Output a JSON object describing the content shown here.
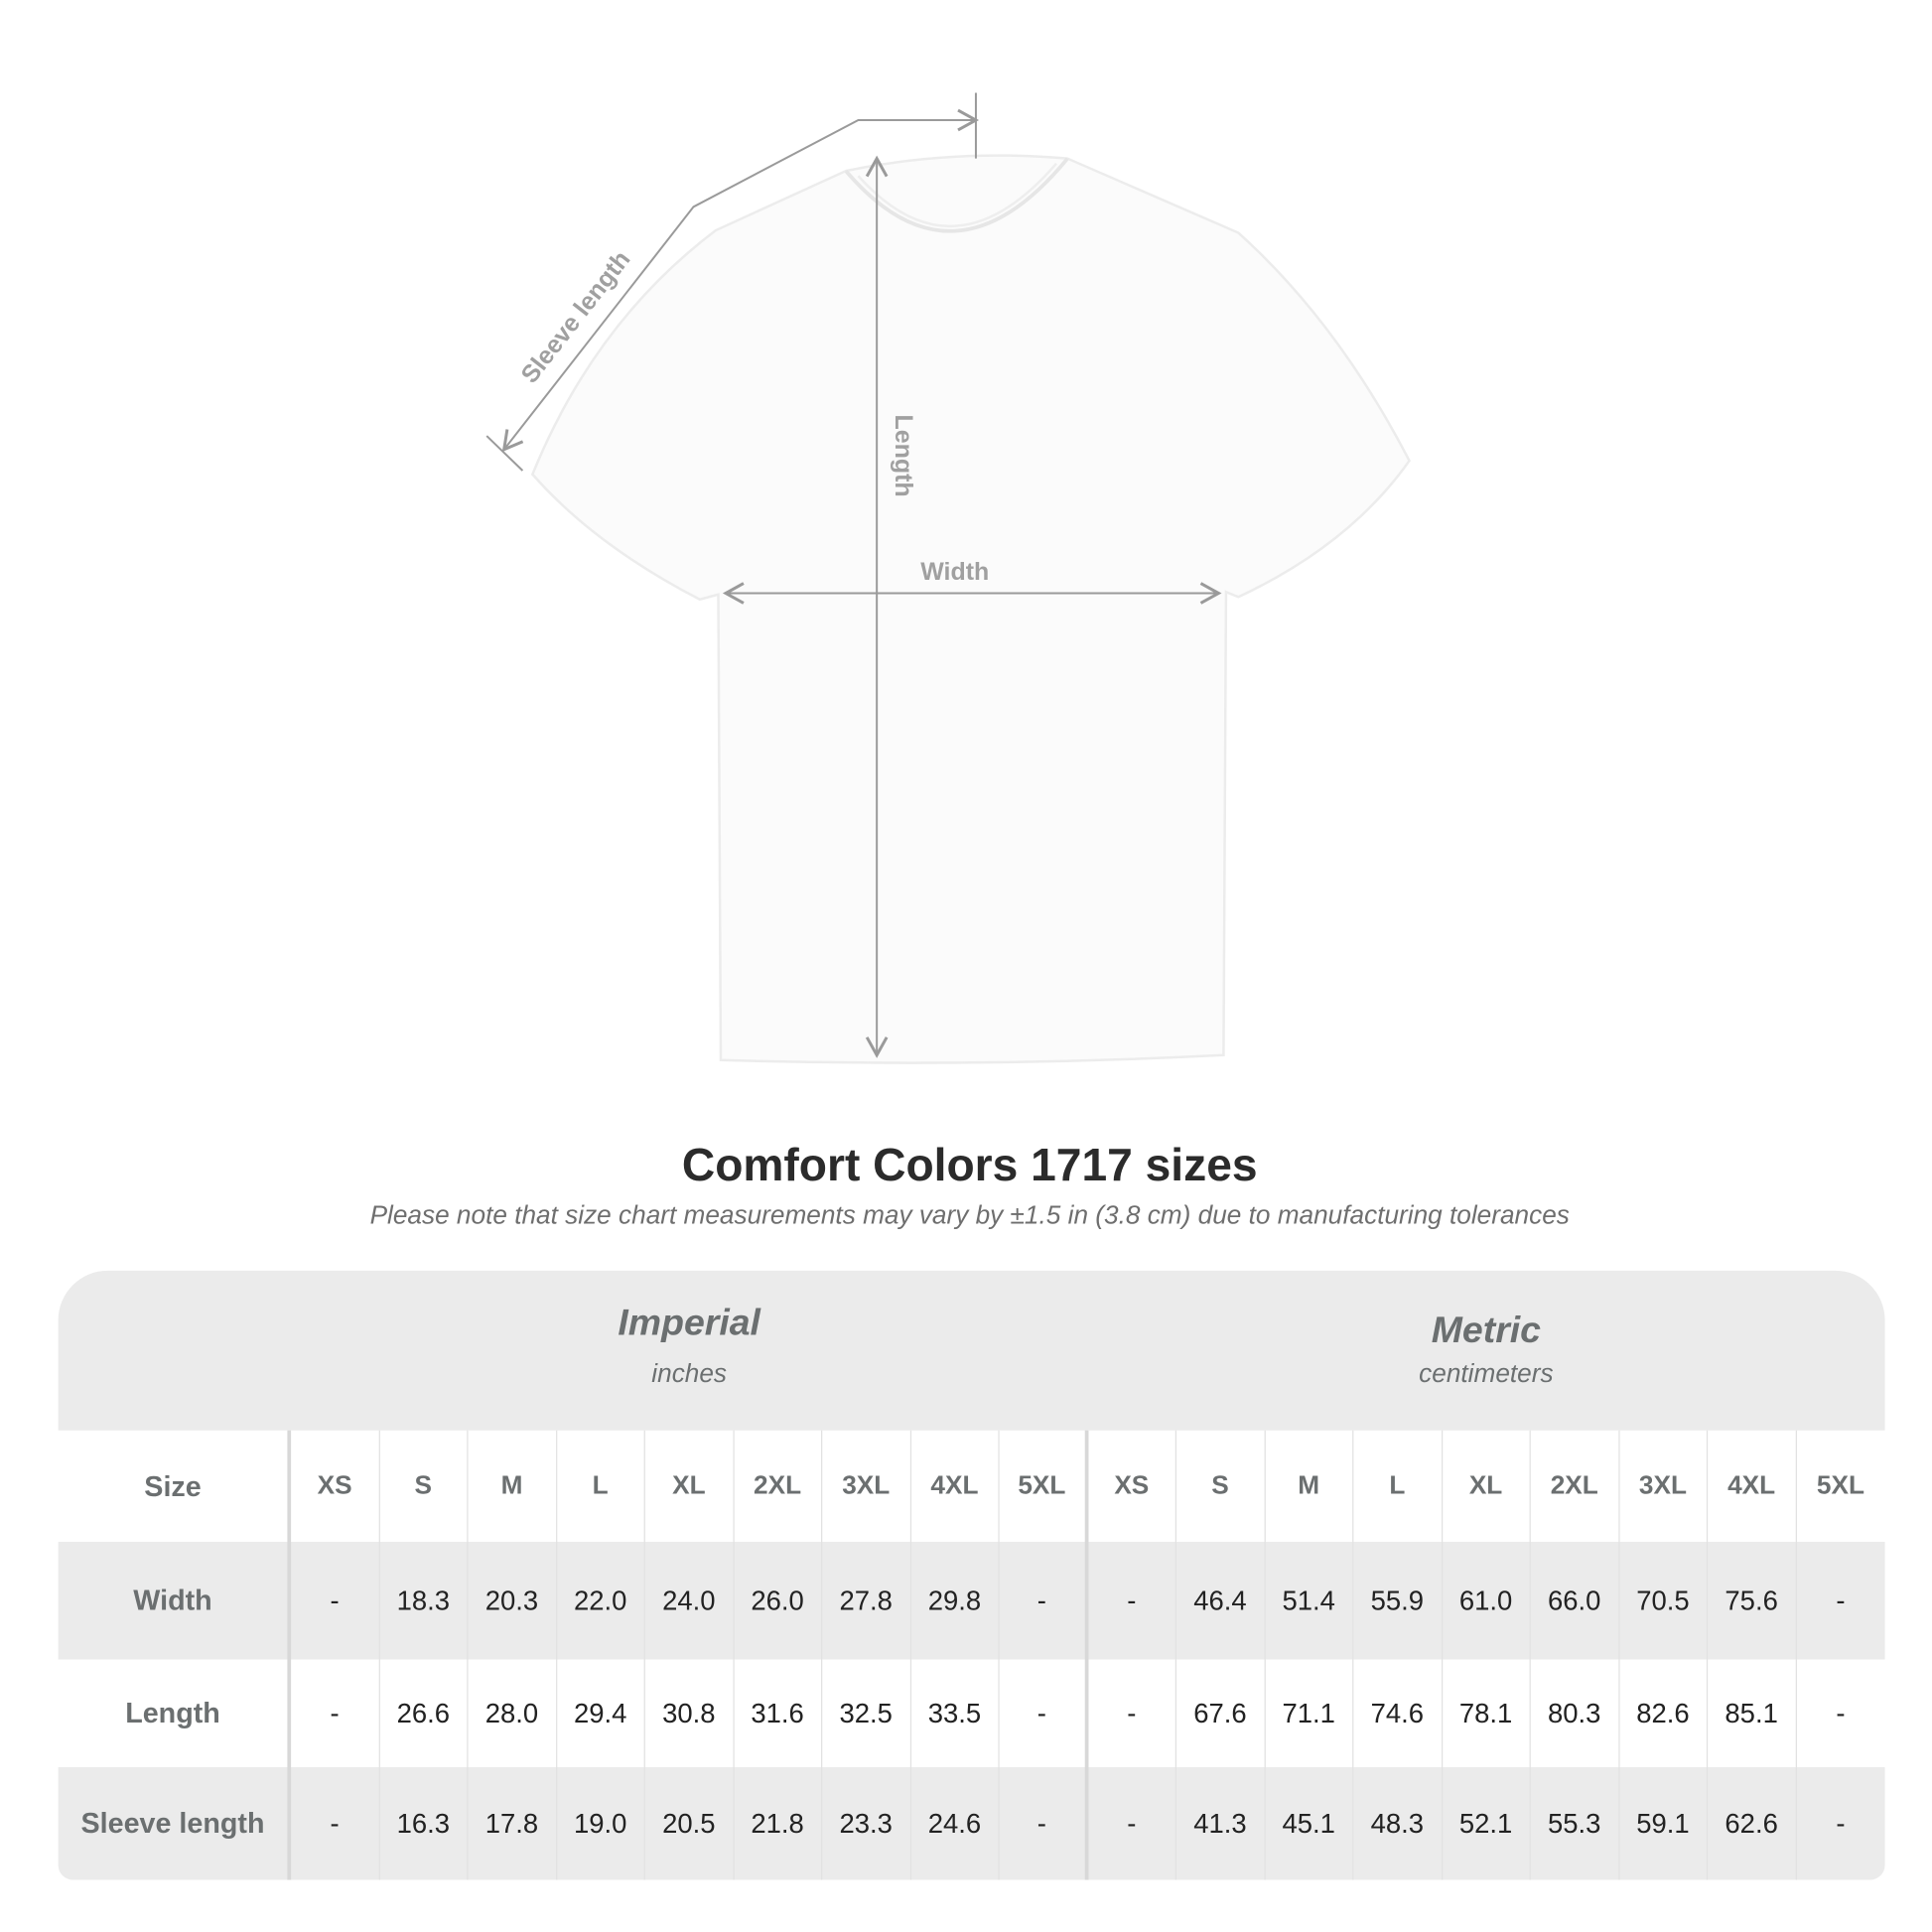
{
  "diagram": {
    "labels": {
      "sleeve": "Sleeve length",
      "length": "Length",
      "width": "Width"
    },
    "line_color": "#9a9a9a"
  },
  "title": "Comfort Colors 1717 sizes",
  "note": "Please note that size chart measurements may vary by ±1.5 in (3.8 cm) due to manufacturing tolerances",
  "table": {
    "imperial": {
      "name": "Imperial",
      "unit": "inches"
    },
    "metric": {
      "name": "Metric",
      "unit": "centimeters"
    },
    "size_label": "Size",
    "sizes": [
      "XS",
      "S",
      "M",
      "L",
      "XL",
      "2XL",
      "3XL",
      "4XL",
      "5XL"
    ],
    "rows": [
      {
        "label": "Width",
        "imperial": [
          "-",
          "18.3",
          "20.3",
          "22.0",
          "24.0",
          "26.0",
          "27.8",
          "29.8",
          "-"
        ],
        "metric": [
          "-",
          "46.4",
          "51.4",
          "55.9",
          "61.0",
          "66.0",
          "70.5",
          "75.6",
          "-"
        ]
      },
      {
        "label": "Length",
        "imperial": [
          "-",
          "26.6",
          "28.0",
          "29.4",
          "30.8",
          "31.6",
          "32.5",
          "33.5",
          "-"
        ],
        "metric": [
          "-",
          "67.6",
          "71.1",
          "74.6",
          "78.1",
          "80.3",
          "82.6",
          "85.1",
          "-"
        ]
      },
      {
        "label": "Sleeve length",
        "imperial": [
          "-",
          "16.3",
          "17.8",
          "19.0",
          "20.5",
          "21.8",
          "23.3",
          "24.6",
          "-"
        ],
        "metric": [
          "-",
          "41.3",
          "45.1",
          "48.3",
          "52.1",
          "55.3",
          "59.1",
          "62.6",
          "-"
        ]
      }
    ],
    "colors": {
      "header_bg": "#ebebeb",
      "header_text": "#6b6f70"
    }
  }
}
